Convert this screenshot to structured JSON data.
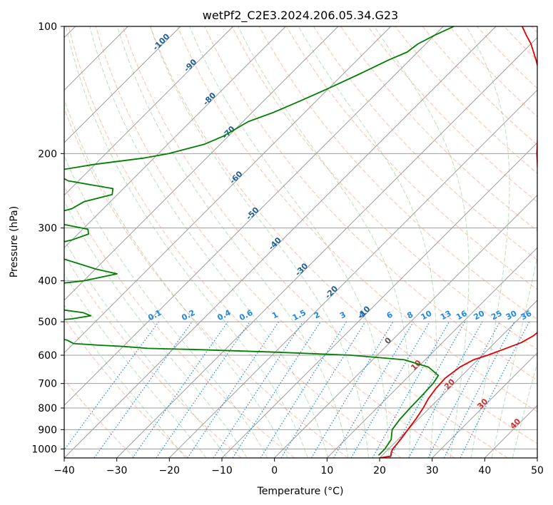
{
  "chart_data": {
    "type": "skew-t",
    "title": "wetPf2_C2E3.2024.206.05.34.G23",
    "xlabel": "Temperature (°C)",
    "ylabel": "Pressure (hPa)",
    "xlim": [
      -40,
      50
    ],
    "ylim_hpa": [
      1050,
      100
    ],
    "x_ticks": [
      -40,
      -30,
      -20,
      -10,
      0,
      10,
      20,
      30,
      40,
      50
    ],
    "y_ticks": [
      100,
      200,
      300,
      400,
      500,
      600,
      700,
      800,
      900,
      1000
    ],
    "isotherm_labels": [
      "-100",
      "-90",
      "-80",
      "-70",
      "-60",
      "-50",
      "-40",
      "-30",
      "-20",
      "-10",
      "0",
      "10",
      "20",
      "30",
      "40"
    ],
    "mixing_ratio_labels": [
      "0.1",
      "0.2",
      "0.4",
      "0.6",
      "1",
      "1.5",
      "2",
      "3",
      "4",
      "6",
      "8",
      "10",
      "13",
      "16",
      "20",
      "25",
      "30",
      "36"
    ],
    "series": [
      {
        "name": "Temperature",
        "color": "#e00000",
        "points": [
          [
            1050,
            20
          ],
          [
            1040,
            21.8
          ],
          [
            1020,
            21.2
          ],
          [
            1000,
            20.8
          ],
          [
            950,
            20.5
          ],
          [
            900,
            20.0
          ],
          [
            850,
            19.5
          ],
          [
            800,
            18.8
          ],
          [
            760,
            18.0
          ],
          [
            720,
            17.5
          ],
          [
            680,
            17.3
          ],
          [
            640,
            18.0
          ],
          [
            615,
            19.2
          ],
          [
            600,
            21.0
          ],
          [
            580,
            23.0
          ],
          [
            560,
            25.0
          ],
          [
            540,
            26.0
          ],
          [
            520,
            26.3
          ],
          [
            500,
            26.0
          ],
          [
            480,
            25.5
          ],
          [
            460,
            25.2
          ],
          [
            440,
            24.0
          ],
          [
            420,
            22.5
          ],
          [
            400,
            20.5
          ],
          [
            380,
            18.5
          ],
          [
            360,
            16.0
          ],
          [
            340,
            13.5
          ],
          [
            320,
            10.5
          ],
          [
            300,
            7.5
          ],
          [
            280,
            4.5
          ],
          [
            260,
            1.5
          ],
          [
            240,
            -1.5
          ],
          [
            220,
            -4.5
          ],
          [
            200,
            -8.0
          ],
          [
            180,
            -11.5
          ],
          [
            160,
            -15.0
          ],
          [
            150,
            -17.0
          ],
          [
            140,
            -19.5
          ],
          [
            130,
            -22.5
          ],
          [
            120,
            -26.0
          ],
          [
            110,
            -30.0
          ],
          [
            105,
            -32.5
          ],
          [
            100,
            -35.0
          ]
        ]
      },
      {
        "name": "Dewpoint",
        "color": "#008000",
        "points": [
          [
            1035,
            19.3
          ],
          [
            1000,
            19.3
          ],
          [
            950,
            18.7
          ],
          [
            900,
            17.0
          ],
          [
            850,
            16.5
          ],
          [
            800,
            16.3
          ],
          [
            750,
            16.2
          ],
          [
            700,
            16.0
          ],
          [
            670,
            15.5
          ],
          [
            640,
            12.0
          ],
          [
            615,
            6.0
          ],
          [
            600,
            -5.0
          ],
          [
            590,
            -20.0
          ],
          [
            582,
            -35.0
          ],
          [
            578,
            -45.0
          ],
          [
            572,
            -50.0
          ],
          [
            568,
            -55.0
          ],
          [
            563,
            -60.0
          ],
          [
            552,
            -62.0
          ],
          [
            540,
            -67.0
          ],
          [
            532,
            -70.0
          ],
          [
            525,
            -80.0
          ],
          [
            512,
            -82.0
          ],
          [
            505,
            -75.0
          ],
          [
            492,
            -65.0
          ],
          [
            484,
            -62.0
          ],
          [
            476,
            -64.0
          ],
          [
            466,
            -70.0
          ],
          [
            460,
            -85.0
          ],
          [
            450,
            -90.0
          ],
          [
            430,
            -85.0
          ],
          [
            412,
            -78.0
          ],
          [
            400,
            -70.0
          ],
          [
            385,
            -65.0
          ],
          [
            375,
            -70.0
          ],
          [
            355,
            -78.0
          ],
          [
            342,
            -82.0
          ],
          [
            332,
            -84.0
          ],
          [
            320,
            -80.0
          ],
          [
            310,
            -78.0
          ],
          [
            302,
            -79.0
          ],
          [
            295,
            -84.0
          ],
          [
            290,
            -90.0
          ],
          [
            282,
            -90.0
          ],
          [
            270,
            -86.0
          ],
          [
            260,
            -85.0
          ],
          [
            250,
            -81.0
          ],
          [
            242,
            -82.0
          ],
          [
            232,
            -92.0
          ],
          [
            225,
            -95.0
          ],
          [
            218,
            -95.0
          ],
          [
            212,
            -90.0
          ],
          [
            205,
            -82.0
          ],
          [
            200,
            -78.0
          ],
          [
            190,
            -73.0
          ],
          [
            182,
            -71.0
          ],
          [
            175,
            -70.0
          ],
          [
            168,
            -69.0
          ],
          [
            160,
            -66.0
          ],
          [
            150,
            -63.0
          ],
          [
            140,
            -60.0
          ],
          [
            130,
            -57.0
          ],
          [
            120,
            -54.0
          ],
          [
            115,
            -52.0
          ],
          [
            110,
            -51.5
          ],
          [
            105,
            -50.0
          ],
          [
            100,
            -48.0
          ]
        ]
      }
    ],
    "background_lines": [
      "isotherms",
      "isobars",
      "dry adiabats",
      "moist adiabats",
      "mixing ratio lines"
    ]
  },
  "colors": {
    "temperature": "#e00000",
    "dewpoint": "#008000",
    "isotherm": "#9e9e9e",
    "isobar": "#9e9e9e",
    "dry_adiabat": "#ff8a65",
    "moist_adiabat": "#81c784",
    "mixing_ratio": "#1e88e5"
  }
}
